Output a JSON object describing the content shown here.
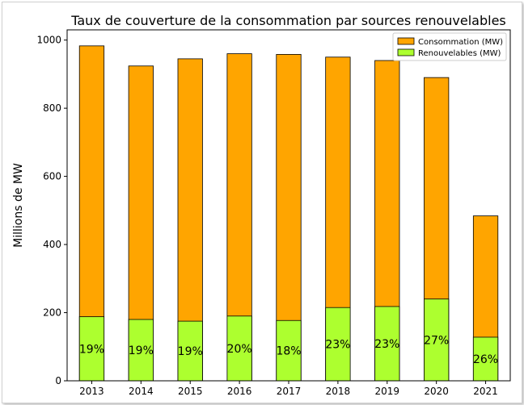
{
  "chart_data": {
    "type": "bar",
    "stacked_overlay": true,
    "title": "Taux de couverture de la consommation par sources renouvelables",
    "xlabel": "",
    "ylabel": "Millions de MW",
    "ylim": [
      0,
      1030
    ],
    "yticks": [
      0,
      200,
      400,
      600,
      800,
      1000
    ],
    "categories": [
      "2013",
      "2014",
      "2015",
      "2016",
      "2017",
      "2018",
      "2019",
      "2020",
      "2021"
    ],
    "series": [
      {
        "name": "Consommation (MW)",
        "color": "#FFA500",
        "values": [
          983,
          924,
          945,
          960,
          958,
          950,
          940,
          890,
          484
        ]
      },
      {
        "name": "Renouvelables (MW)",
        "color": "#ADFF2F",
        "values": [
          188,
          180,
          175,
          190,
          177,
          215,
          218,
          240,
          128
        ]
      }
    ],
    "data_labels": [
      "19%",
      "19%",
      "19%",
      "20%",
      "18%",
      "23%",
      "23%",
      "27%",
      "26%"
    ],
    "legend_position": "top-right"
  }
}
